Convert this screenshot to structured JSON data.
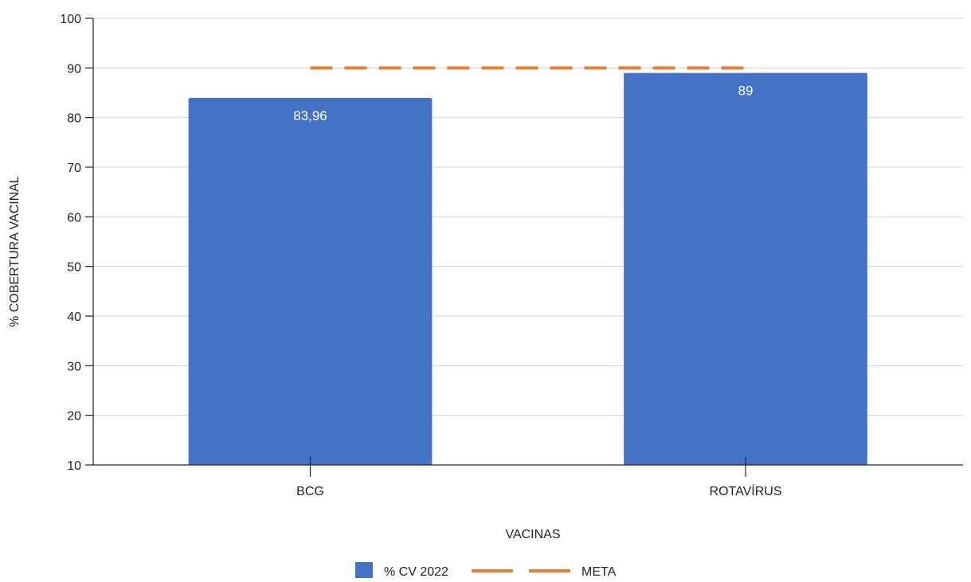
{
  "chart_data": {
    "type": "bar",
    "categories": [
      "BCG",
      "ROTAVÍRUS"
    ],
    "series": [
      {
        "name": "% CV 2022",
        "values": [
          83.96,
          89
        ],
        "data_labels": [
          "83,96",
          "89"
        ],
        "color": "#4472C4"
      },
      {
        "name": "META",
        "type": "line",
        "style": "dashed",
        "values": [
          90,
          90
        ],
        "color": "#ED7D31"
      }
    ],
    "title": "",
    "xlabel": "VACINAS",
    "ylabel": "% COBERTURA VACINAL",
    "ylim": [
      10,
      100
    ],
    "yticks": [
      10,
      20,
      30,
      40,
      50,
      60,
      70,
      80,
      90,
      100
    ],
    "grid": true,
    "legend_position": "bottom"
  }
}
